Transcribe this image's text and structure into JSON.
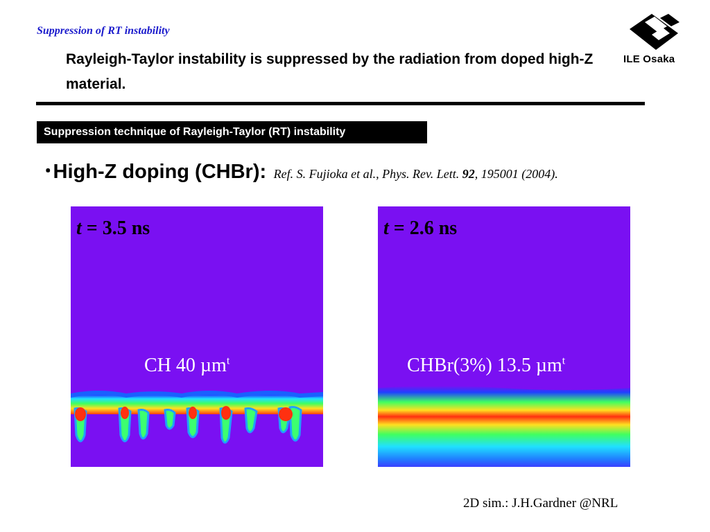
{
  "header": {
    "section_title": "Suppression of RT instability",
    "headline": "Rayleigh-Taylor instability is suppressed by the radiation from doped high-Z material.",
    "logo_text": "ILE Osaka"
  },
  "subtitle": "Suppression technique of Rayleigh-Taylor (RT) instability",
  "bullet": {
    "marker": "･",
    "main": "High-Z doping (CHBr):",
    "ref": {
      "prefix": "Ref.  S. Fujioka et al., Phys. Rev. Lett.",
      "volume": "92",
      "suffix": ", 195001 (2004)."
    }
  },
  "panels": [
    {
      "time_var": "t",
      "time_value": " = 3.5 ns",
      "label": "CH 40 µm",
      "label_sup": "t"
    },
    {
      "time_var": "t",
      "time_value": " = 2.6 ns",
      "label": "CHBr(3%) 13.5 µm",
      "label_sup": "t"
    }
  ],
  "credit": "2D sim.: J.H.Gardner @NRL",
  "colors": {
    "title_blue": "#1a1acc",
    "sim_background": "#7a10f2"
  }
}
